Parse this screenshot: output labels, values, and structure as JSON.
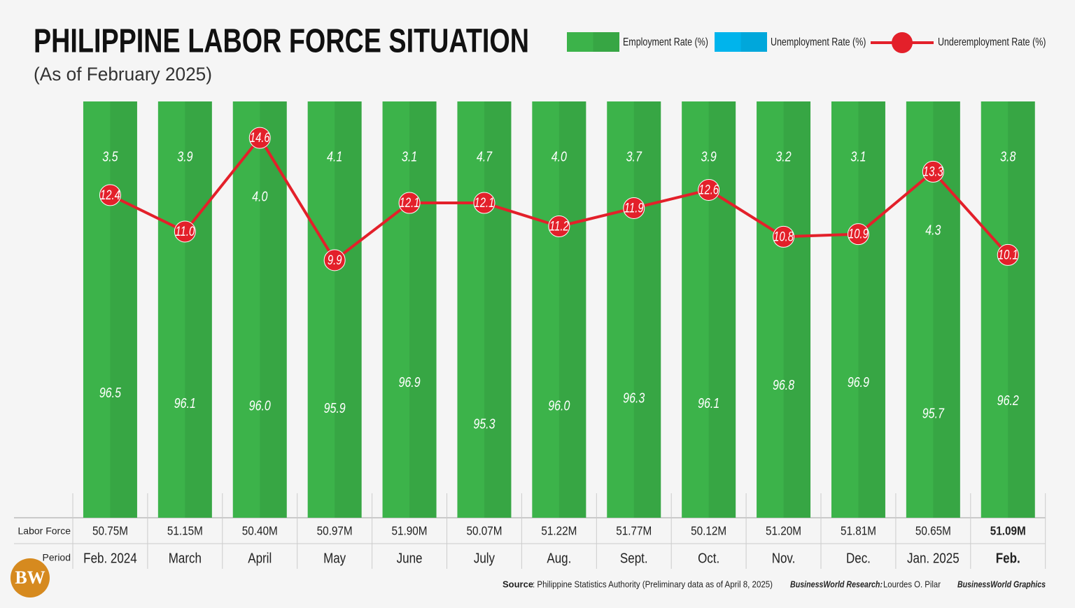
{
  "chart_data": {
    "type": "bar",
    "title": "PHILIPPINE LABOR FORCE SITUATION",
    "subtitle": "(As of February 2025)",
    "stacked": true,
    "categories": [
      "Feb. 2024",
      "March",
      "April",
      "May",
      "June",
      "July",
      "Aug.",
      "Sept.",
      "Oct.",
      "Nov.",
      "Dec.",
      "Jan. 2025",
      "Feb."
    ],
    "series": [
      {
        "name": "Employment  Rate (%)",
        "type": "bar",
        "color": "#3cb34a",
        "values": [
          96.5,
          96.1,
          96.0,
          95.9,
          96.9,
          95.3,
          96.0,
          96.3,
          96.1,
          96.8,
          96.9,
          95.7,
          96.2
        ],
        "value_labels": [
          "96.5",
          "96.1",
          "96.0",
          "95.9",
          "96.9",
          "95.3",
          "96.0",
          "96.3",
          "96.1",
          "96.8",
          "96.9",
          "95.7",
          "96.2"
        ]
      },
      {
        "name": "Unemployment Rate (%)",
        "type": "bar",
        "color": "#00b4ec",
        "values": [
          3.5,
          3.9,
          4.0,
          4.1,
          3.1,
          4.7,
          4.0,
          3.7,
          3.9,
          3.2,
          3.1,
          4.3,
          3.8
        ],
        "value_labels": [
          "3.5",
          "3.9",
          "4.0",
          "4.1",
          "3.1",
          "4.7",
          "4.0",
          "3.7",
          "3.9",
          "3.2",
          "3.1",
          "4.3",
          "3.8"
        ]
      },
      {
        "name": "Underemployment Rate (%)",
        "type": "line",
        "axis": "y2",
        "color": "#e3202a",
        "values": [
          12.4,
          11.0,
          14.6,
          9.9,
          12.1,
          12.1,
          11.2,
          11.9,
          12.6,
          10.8,
          10.9,
          13.3,
          10.1
        ],
        "value_labels": [
          "12.4",
          "11.0",
          "14.6",
          "9.9",
          "12.1",
          "12.1",
          "11.2",
          "11.9",
          "12.6",
          "10.8",
          "10.9",
          "13.3",
          "10.1"
        ]
      }
    ],
    "ylim": [
      92,
      100
    ],
    "y2lim": [
      0,
      16
    ],
    "labor_force_label": "Labor Force",
    "labor_force": [
      "50.75M",
      "51.15M",
      "50.40M",
      "50.97M",
      "51.90M",
      "50.07M",
      "51.22M",
      "51.77M",
      "50.12M",
      "51.20M",
      "51.81M",
      "50.65M",
      "51.09M"
    ],
    "period_label": "Period",
    "logo": "BW",
    "source_label": "Source",
    "source": ": Philippine Statistics Authority (Preliminary data as of April 8, 2025)",
    "research_label": "BusinessWorld Research:",
    "research": " Lourdes O. Pilar",
    "graphics": "BusinessWorld Graphics"
  }
}
